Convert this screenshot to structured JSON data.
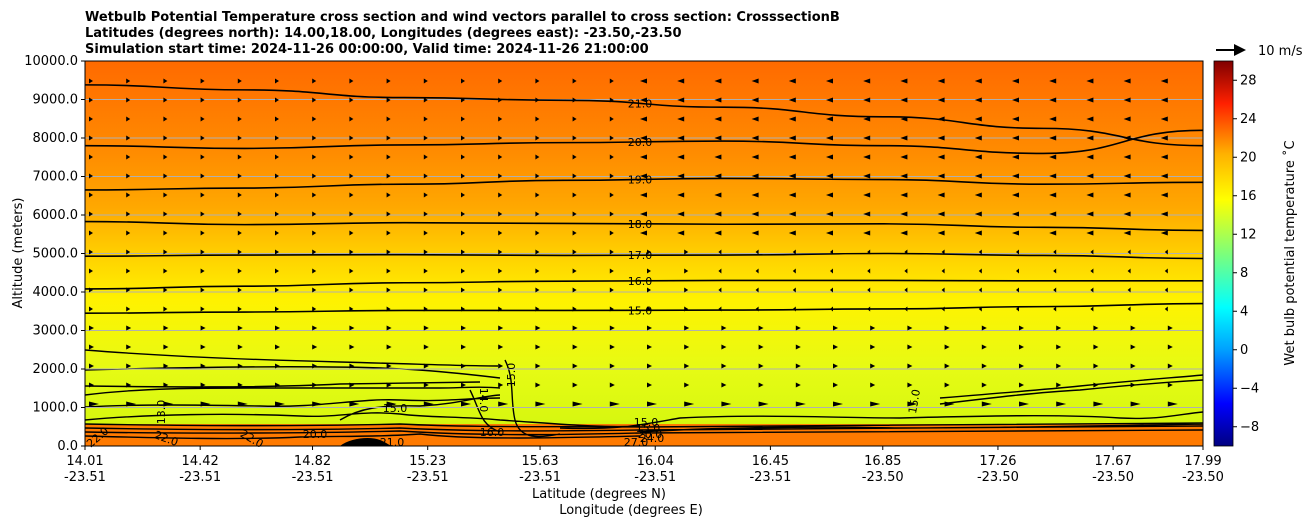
{
  "chart_data": {
    "type": "heatmap",
    "title_lines": [
      "Wetbulb Potential Temperature cross section and wind vectors parallel to cross section: CrosssectionB",
      "Latitudes (degrees north): 14.00,18.00, Longitudes (degrees east): -23.50,-23.50",
      "Simulation start time: 2024-11-26 00:00:00, Valid time: 2024-11-26 21:00:00"
    ],
    "xlabel": "Latitude (degrees N)",
    "xlabel2": "Longitude (degrees E)",
    "ylabel": "Altitude (meters)",
    "colorbar_label": "Wet bulb potential temperature ˚C",
    "x_ticks": [
      {
        "lat": "14.01",
        "lon": "-23.51"
      },
      {
        "lat": "14.42",
        "lon": "-23.51"
      },
      {
        "lat": "14.82",
        "lon": "-23.51"
      },
      {
        "lat": "15.23",
        "lon": "-23.51"
      },
      {
        "lat": "15.63",
        "lon": "-23.51"
      },
      {
        "lat": "16.04",
        "lon": "-23.51"
      },
      {
        "lat": "16.45",
        "lon": "-23.51"
      },
      {
        "lat": "16.85",
        "lon": "-23.50"
      },
      {
        "lat": "17.26",
        "lon": "-23.50"
      },
      {
        "lat": "17.67",
        "lon": "-23.50"
      },
      {
        "lat": "17.99",
        "lon": "-23.50"
      }
    ],
    "x_tick_positions": [
      14.01,
      14.42,
      14.82,
      15.23,
      15.63,
      16.04,
      16.45,
      16.85,
      17.26,
      17.67,
      17.99
    ],
    "xlim": [
      14.01,
      17.99
    ],
    "y_ticks": [
      "0.0",
      "1000.0",
      "2000.0",
      "3000.0",
      "4000.0",
      "5000.0",
      "6000.0",
      "7000.0",
      "8000.0",
      "9000.0",
      "10000.0"
    ],
    "ylim": [
      0,
      10000
    ],
    "grid": "horizontal",
    "colorbar_ticks": [
      "−8",
      "−4",
      "0",
      "4",
      "8",
      "12",
      "16",
      "20",
      "24",
      "28"
    ],
    "colorbar_range": [
      -10,
      30
    ],
    "quiver_key_label": "10 m/s",
    "contours": [
      {
        "level": 15.0,
        "label": "15.0",
        "y": [
          3450,
          3480,
          3520,
          3520,
          3530,
          3560,
          3620,
          3700
        ]
      },
      {
        "level": 16.0,
        "label": "16.0",
        "y": [
          4080,
          4150,
          4240,
          4280,
          4300,
          4300,
          4290,
          4290
        ]
      },
      {
        "level": 17.0,
        "label": "17.0",
        "y": [
          4930,
          4960,
          4970,
          4950,
          4960,
          5000,
          4950,
          4870
        ]
      },
      {
        "level": 18.0,
        "label": "18.0",
        "y": [
          5830,
          5750,
          5800,
          5780,
          5760,
          5770,
          5680,
          5600
        ]
      },
      {
        "level": 19.0,
        "label": "19.0",
        "y": [
          6650,
          6700,
          6800,
          6900,
          6950,
          6920,
          6800,
          6850
        ]
      },
      {
        "level": 20.0,
        "label": "20.0",
        "y": [
          7800,
          7730,
          7820,
          7880,
          7920,
          7800,
          7600,
          8200
        ]
      },
      {
        "level": 21.0,
        "label": "21.0",
        "y": [
          9380,
          9250,
          9050,
          8980,
          8800,
          8550,
          8250,
          7800
        ]
      }
    ],
    "contour_labels_lower": [
      "22.0",
      "22.0",
      "22.0",
      "20.0",
      "21.0",
      "13.0",
      "15.0",
      "14.0",
      "15.0",
      "16.0",
      "15.0",
      "27.0",
      "15.0",
      "20.0",
      "24.0",
      "15.0"
    ]
  }
}
